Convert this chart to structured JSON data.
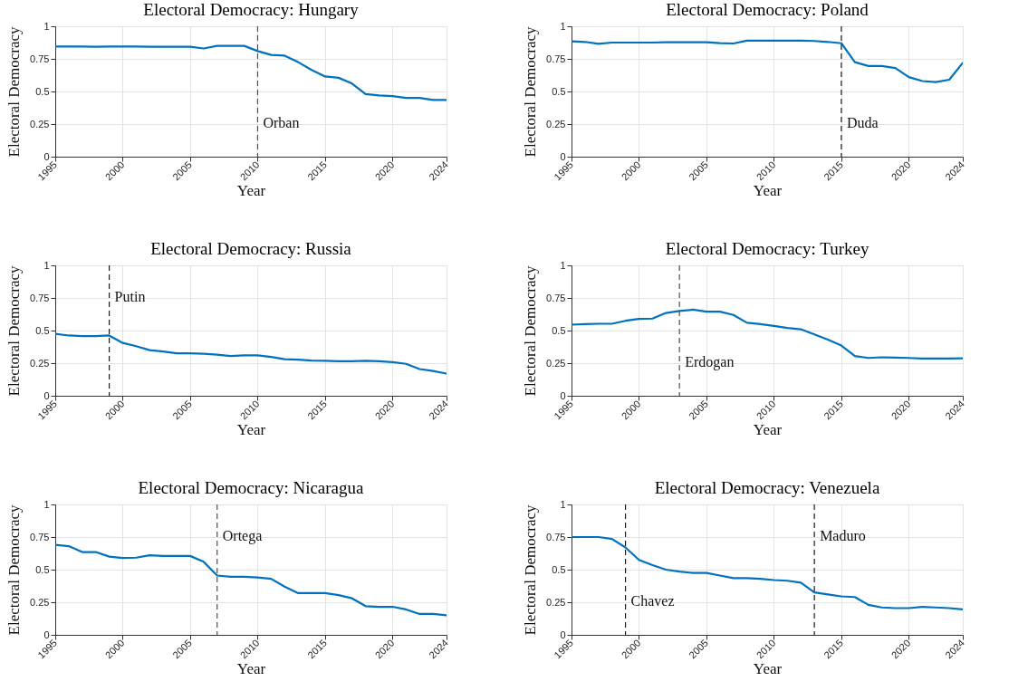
{
  "chart_data": [
    {
      "type": "line",
      "title": "Electoral Democracy: Hungary",
      "xlabel": "Year",
      "ylabel": "Electoral Democracy",
      "x": [
        1995,
        1996,
        1997,
        1998,
        1999,
        2000,
        2001,
        2002,
        2003,
        2004,
        2005,
        2006,
        2007,
        2008,
        2009,
        2010,
        2011,
        2012,
        2013,
        2014,
        2015,
        2016,
        2017,
        2018,
        2019,
        2020,
        2021,
        2022,
        2023,
        2024
      ],
      "series": [
        {
          "color": "#0072bd",
          "values": [
            0.845,
            0.845,
            0.845,
            0.843,
            0.845,
            0.845,
            0.845,
            0.843,
            0.843,
            0.843,
            0.843,
            0.83,
            0.85,
            0.85,
            0.85,
            0.81,
            0.78,
            0.775,
            0.725,
            0.665,
            0.615,
            0.605,
            0.56,
            0.48,
            0.47,
            0.465,
            0.45,
            0.45,
            0.435,
            0.435
          ]
        }
      ],
      "xlim": [
        1995,
        2024
      ],
      "xticks": [
        1995,
        2000,
        2005,
        2010,
        2015,
        2020,
        2024
      ],
      "ylim": [
        0,
        1
      ],
      "yticks": [
        0,
        0.25,
        0.5,
        0.75,
        1
      ],
      "grid": true,
      "line_style": "solid",
      "ref_lines": [
        {
          "axis": "x",
          "value": 2010,
          "label": "Orban",
          "color": "#4d4d4d",
          "line_style": "dashed"
        }
      ]
    },
    {
      "type": "line",
      "title": "Electoral Democracy: Poland",
      "xlabel": "Year",
      "ylabel": "Electoral Democracy",
      "x": [
        1995,
        1996,
        1997,
        1998,
        1999,
        2000,
        2001,
        2002,
        2003,
        2004,
        2005,
        2006,
        2007,
        2008,
        2009,
        2010,
        2011,
        2012,
        2013,
        2014,
        2015,
        2016,
        2017,
        2018,
        2019,
        2020,
        2021,
        2022,
        2023,
        2024
      ],
      "series": [
        {
          "color": "#0072bd",
          "values": [
            0.885,
            0.88,
            0.865,
            0.875,
            0.875,
            0.875,
            0.875,
            0.877,
            0.877,
            0.877,
            0.878,
            0.87,
            0.868,
            0.89,
            0.89,
            0.89,
            0.89,
            0.89,
            0.887,
            0.88,
            0.87,
            0.725,
            0.695,
            0.695,
            0.68,
            0.61,
            0.58,
            0.572,
            0.59,
            0.72
          ]
        }
      ],
      "xlim": [
        1995,
        2024
      ],
      "xticks": [
        1995,
        2000,
        2005,
        2010,
        2015,
        2020,
        2024
      ],
      "ylim": [
        0,
        1
      ],
      "yticks": [
        0,
        0.25,
        0.5,
        0.75,
        1
      ],
      "grid": true,
      "line_style": "solid",
      "ref_lines": [
        {
          "axis": "x",
          "value": 2015,
          "label": "Duda",
          "color": "#1a1a1a",
          "line_style": "dashed"
        }
      ]
    },
    {
      "type": "line",
      "title": "Electoral Democracy: Russia",
      "xlabel": "Year",
      "ylabel": "Electoral Democracy",
      "x": [
        1995,
        1996,
        1997,
        1998,
        1999,
        2000,
        2001,
        2002,
        2003,
        2004,
        2005,
        2006,
        2007,
        2008,
        2009,
        2010,
        2011,
        2012,
        2013,
        2014,
        2015,
        2016,
        2017,
        2018,
        2019,
        2020,
        2021,
        2022,
        2023,
        2024
      ],
      "series": [
        {
          "color": "#0072bd",
          "values": [
            0.475,
            0.462,
            0.458,
            0.458,
            0.462,
            0.405,
            0.38,
            0.35,
            0.34,
            0.325,
            0.325,
            0.322,
            0.315,
            0.305,
            0.31,
            0.31,
            0.298,
            0.28,
            0.277,
            0.27,
            0.268,
            0.265,
            0.265,
            0.268,
            0.265,
            0.258,
            0.245,
            0.205,
            0.19,
            0.17
          ]
        }
      ],
      "xlim": [
        1995,
        2024
      ],
      "xticks": [
        1995,
        2000,
        2005,
        2010,
        2015,
        2020,
        2024
      ],
      "ylim": [
        0,
        1
      ],
      "yticks": [
        0,
        0.25,
        0.5,
        0.75,
        1
      ],
      "grid": true,
      "line_style": "solid",
      "ref_lines": [
        {
          "axis": "x",
          "value": 1999,
          "label": "Putin",
          "color": "#1a1a1a",
          "line_style": "dashed"
        }
      ]
    },
    {
      "type": "line",
      "title": "Electoral Democracy: Turkey",
      "xlabel": "Year",
      "ylabel": "Electoral Democracy",
      "x": [
        1995,
        1996,
        1997,
        1998,
        1999,
        2000,
        2001,
        2002,
        2003,
        2004,
        2005,
        2006,
        2007,
        2008,
        2009,
        2010,
        2011,
        2012,
        2013,
        2014,
        2015,
        2016,
        2017,
        2018,
        2019,
        2020,
        2021,
        2022,
        2023,
        2024
      ],
      "series": [
        {
          "color": "#0072bd",
          "values": [
            0.545,
            0.55,
            0.552,
            0.552,
            0.575,
            0.59,
            0.592,
            0.635,
            0.65,
            0.66,
            0.645,
            0.645,
            0.62,
            0.56,
            0.55,
            0.535,
            0.52,
            0.51,
            0.47,
            0.43,
            0.385,
            0.305,
            0.29,
            0.295,
            0.292,
            0.29,
            0.285,
            0.285,
            0.285,
            0.287
          ]
        }
      ],
      "xlim": [
        1995,
        2024
      ],
      "xticks": [
        1995,
        2000,
        2005,
        2010,
        2015,
        2020,
        2024
      ],
      "ylim": [
        0,
        1
      ],
      "yticks": [
        0,
        0.25,
        0.5,
        0.75,
        1
      ],
      "grid": true,
      "line_style": "solid",
      "ref_lines": [
        {
          "axis": "x",
          "value": 2003,
          "label": "Erdogan",
          "color": "#4d4d4d",
          "line_style": "dashed"
        }
      ]
    },
    {
      "type": "line",
      "title": "Electoral Democracy: Nicaragua",
      "xlabel": "Year",
      "ylabel": "Electoral Democracy",
      "x": [
        1995,
        1996,
        1997,
        1998,
        1999,
        2000,
        2001,
        2002,
        2003,
        2004,
        2005,
        2006,
        2007,
        2008,
        2009,
        2010,
        2011,
        2012,
        2013,
        2014,
        2015,
        2016,
        2017,
        2018,
        2019,
        2020,
        2021,
        2022,
        2023,
        2024
      ],
      "series": [
        {
          "color": "#0072bd",
          "values": [
            0.69,
            0.68,
            0.635,
            0.635,
            0.6,
            0.59,
            0.592,
            0.61,
            0.605,
            0.605,
            0.605,
            0.56,
            0.455,
            0.445,
            0.445,
            0.44,
            0.43,
            0.37,
            0.32,
            0.32,
            0.32,
            0.305,
            0.28,
            0.22,
            0.215,
            0.215,
            0.195,
            0.16,
            0.16,
            0.15
          ]
        }
      ],
      "xlim": [
        1995,
        2024
      ],
      "xticks": [
        1995,
        2000,
        2005,
        2010,
        2015,
        2020,
        2024
      ],
      "ylim": [
        0,
        1
      ],
      "yticks": [
        0,
        0.25,
        0.5,
        0.75,
        1
      ],
      "grid": true,
      "line_style": "solid",
      "ref_lines": [
        {
          "axis": "x",
          "value": 2007,
          "label": "Ortega",
          "color": "#4d4d4d",
          "line_style": "dashed"
        }
      ]
    },
    {
      "type": "line",
      "title": "Electoral Democracy: Venezuela",
      "xlabel": "Year",
      "ylabel": "Electoral Democracy",
      "x": [
        1995,
        1996,
        1997,
        1998,
        1999,
        2000,
        2001,
        2002,
        2003,
        2004,
        2005,
        2006,
        2007,
        2008,
        2009,
        2010,
        2011,
        2012,
        2013,
        2014,
        2015,
        2016,
        2017,
        2018,
        2019,
        2020,
        2021,
        2022,
        2023,
        2024
      ],
      "series": [
        {
          "color": "#0072bd",
          "values": [
            0.75,
            0.75,
            0.75,
            0.735,
            0.67,
            0.575,
            0.535,
            0.5,
            0.485,
            0.475,
            0.475,
            0.455,
            0.435,
            0.435,
            0.43,
            0.42,
            0.415,
            0.4,
            0.325,
            0.31,
            0.295,
            0.29,
            0.23,
            0.21,
            0.205,
            0.205,
            0.215,
            0.21,
            0.205,
            0.195
          ]
        }
      ],
      "xlim": [
        1995,
        2024
      ],
      "xticks": [
        1995,
        2000,
        2005,
        2010,
        2015,
        2020,
        2024
      ],
      "ylim": [
        0,
        1
      ],
      "yticks": [
        0,
        0.25,
        0.5,
        0.75,
        1
      ],
      "grid": true,
      "line_style": "solid",
      "ref_lines": [
        {
          "axis": "x",
          "value": 1999,
          "label": "Chavez",
          "color": "#1a1a1a",
          "line_style": "dashed"
        },
        {
          "axis": "x",
          "value": 2013,
          "label": "Maduro",
          "color": "#1a1a1a",
          "line_style": "dashed"
        }
      ]
    }
  ]
}
